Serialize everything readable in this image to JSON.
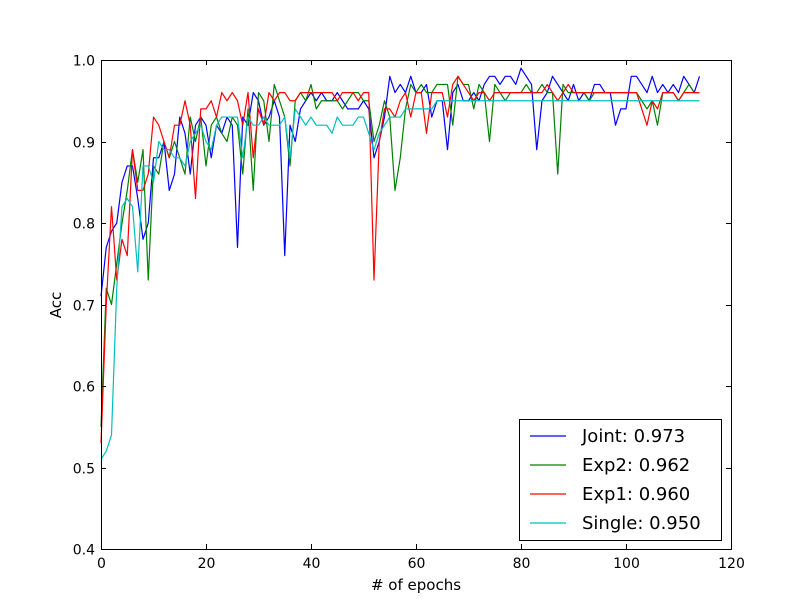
{
  "chart_data": {
    "type": "line",
    "title": "",
    "xlabel": "# of epochs",
    "ylabel": "Acc",
    "xlim": [
      0,
      120
    ],
    "ylim": [
      0.4,
      1.0
    ],
    "xticks": [
      "0",
      "20",
      "40",
      "60",
      "80",
      "100",
      "120"
    ],
    "yticks": [
      "0.4",
      "0.5",
      "0.6",
      "0.7",
      "0.8",
      "0.9",
      "1.0"
    ],
    "grid": false,
    "legend_position": "lower-right",
    "x": [
      0,
      1,
      2,
      3,
      4,
      5,
      6,
      7,
      8,
      9,
      10,
      11,
      12,
      13,
      14,
      15,
      16,
      17,
      18,
      19,
      20,
      21,
      22,
      23,
      24,
      25,
      26,
      27,
      28,
      29,
      30,
      31,
      32,
      33,
      34,
      35,
      36,
      37,
      38,
      39,
      40,
      41,
      42,
      43,
      44,
      45,
      46,
      47,
      48,
      49,
      50,
      51,
      52,
      53,
      54,
      55,
      56,
      57,
      58,
      59,
      60,
      61,
      62,
      63,
      64,
      65,
      66,
      67,
      68,
      69,
      70,
      71,
      72,
      73,
      74,
      75,
      76,
      77,
      78,
      79,
      80,
      81,
      82,
      83,
      84,
      85,
      86,
      87,
      88,
      89,
      90,
      91,
      92,
      93,
      94,
      95,
      96,
      97,
      98,
      99,
      100,
      101,
      102,
      103,
      104,
      105,
      106,
      107,
      108,
      109,
      110,
      111,
      112,
      113,
      114
    ],
    "series": [
      {
        "name": "Joint: 0.973",
        "color": "#0000ff",
        "values": [
          0.71,
          0.77,
          0.79,
          0.8,
          0.85,
          0.87,
          0.87,
          0.83,
          0.78,
          0.8,
          0.88,
          0.88,
          0.9,
          0.84,
          0.86,
          0.93,
          0.91,
          0.86,
          0.92,
          0.93,
          0.92,
          0.88,
          0.92,
          0.91,
          0.93,
          0.92,
          0.77,
          0.93,
          0.92,
          0.96,
          0.95,
          0.92,
          0.93,
          0.95,
          0.93,
          0.76,
          0.92,
          0.9,
          0.94,
          0.95,
          0.96,
          0.95,
          0.96,
          0.95,
          0.95,
          0.96,
          0.95,
          0.94,
          0.94,
          0.94,
          0.95,
          0.94,
          0.88,
          0.9,
          0.93,
          0.98,
          0.96,
          0.97,
          0.96,
          0.98,
          0.96,
          0.96,
          0.97,
          0.93,
          0.95,
          0.95,
          0.89,
          0.96,
          0.97,
          0.95,
          0.95,
          0.96,
          0.95,
          0.97,
          0.98,
          0.98,
          0.97,
          0.98,
          0.98,
          0.97,
          0.99,
          0.98,
          0.97,
          0.89,
          0.95,
          0.96,
          0.98,
          0.97,
          0.96,
          0.95,
          0.97,
          0.95,
          0.96,
          0.95,
          0.97,
          0.97,
          0.96,
          0.96,
          0.92,
          0.94,
          0.94,
          0.98,
          0.98,
          0.97,
          0.96,
          0.98,
          0.96,
          0.97,
          0.96,
          0.97,
          0.96,
          0.98,
          0.97,
          0.96,
          0.98
        ]
      },
      {
        "name": "Exp2: 0.962",
        "color": "#008000",
        "values": [
          0.55,
          0.72,
          0.7,
          0.75,
          0.8,
          0.84,
          0.89,
          0.85,
          0.89,
          0.73,
          0.87,
          0.86,
          0.9,
          0.88,
          0.9,
          0.88,
          0.86,
          0.93,
          0.9,
          0.93,
          0.87,
          0.92,
          0.93,
          0.91,
          0.9,
          0.93,
          0.92,
          0.86,
          0.94,
          0.84,
          0.96,
          0.95,
          0.9,
          0.97,
          0.95,
          0.93,
          0.87,
          0.95,
          0.96,
          0.95,
          0.97,
          0.94,
          0.95,
          0.95,
          0.95,
          0.95,
          0.94,
          0.95,
          0.96,
          0.96,
          0.95,
          0.95,
          0.9,
          0.92,
          0.95,
          0.93,
          0.84,
          0.88,
          0.94,
          0.97,
          0.96,
          0.97,
          0.96,
          0.96,
          0.97,
          0.97,
          0.97,
          0.92,
          0.98,
          0.97,
          0.97,
          0.94,
          0.97,
          0.96,
          0.9,
          0.97,
          0.96,
          0.95,
          0.96,
          0.96,
          0.96,
          0.97,
          0.96,
          0.96,
          0.97,
          0.96,
          0.96,
          0.86,
          0.97,
          0.96,
          0.96,
          0.96,
          0.96,
          0.95,
          0.96,
          0.96,
          0.96,
          0.96,
          0.96,
          0.96,
          0.96,
          0.96,
          0.96,
          0.95,
          0.94,
          0.95,
          0.92,
          0.96,
          0.96,
          0.96,
          0.95,
          0.96,
          0.97,
          0.96,
          0.96
        ]
      },
      {
        "name": "Exp1: 0.960",
        "color": "#ff0000",
        "values": [
          0.53,
          0.7,
          0.82,
          0.73,
          0.78,
          0.76,
          0.89,
          0.84,
          0.84,
          0.86,
          0.93,
          0.92,
          0.9,
          0.88,
          0.92,
          0.92,
          0.95,
          0.92,
          0.83,
          0.94,
          0.94,
          0.95,
          0.93,
          0.96,
          0.95,
          0.96,
          0.95,
          0.92,
          0.96,
          0.88,
          0.94,
          0.92,
          0.96,
          0.95,
          0.96,
          0.96,
          0.95,
          0.95,
          0.96,
          0.96,
          0.96,
          0.96,
          0.96,
          0.96,
          0.96,
          0.95,
          0.96,
          0.96,
          0.96,
          0.95,
          0.96,
          0.96,
          0.73,
          0.9,
          0.94,
          0.94,
          0.93,
          0.95,
          0.96,
          0.93,
          0.96,
          0.96,
          0.91,
          0.96,
          0.96,
          0.96,
          0.93,
          0.97,
          0.98,
          0.97,
          0.96,
          0.95,
          0.96,
          0.96,
          0.95,
          0.96,
          0.96,
          0.96,
          0.96,
          0.96,
          0.96,
          0.96,
          0.96,
          0.96,
          0.96,
          0.97,
          0.96,
          0.95,
          0.96,
          0.97,
          0.96,
          0.96,
          0.96,
          0.96,
          0.96,
          0.96,
          0.96,
          0.96,
          0.96,
          0.96,
          0.96,
          0.96,
          0.96,
          0.94,
          0.92,
          0.95,
          0.94,
          0.96,
          0.96,
          0.96,
          0.95,
          0.96,
          0.96,
          0.96,
          0.96
        ]
      },
      {
        "name": "Single: 0.950",
        "color": "#00bfbf",
        "values": [
          0.51,
          0.52,
          0.54,
          0.72,
          0.82,
          0.83,
          0.82,
          0.74,
          0.87,
          0.87,
          0.85,
          0.9,
          0.89,
          0.89,
          0.88,
          0.88,
          0.87,
          0.9,
          0.91,
          0.92,
          0.9,
          0.89,
          0.92,
          0.93,
          0.93,
          0.93,
          0.93,
          0.88,
          0.93,
          0.92,
          0.92,
          0.93,
          0.92,
          0.92,
          0.92,
          0.93,
          0.88,
          0.94,
          0.93,
          0.92,
          0.93,
          0.92,
          0.92,
          0.92,
          0.91,
          0.93,
          0.92,
          0.92,
          0.92,
          0.93,
          0.93,
          0.91,
          0.89,
          0.91,
          0.92,
          0.93,
          0.93,
          0.93,
          0.94,
          0.94,
          0.94,
          0.94,
          0.94,
          0.94,
          0.95,
          0.95,
          0.95,
          0.95,
          0.95,
          0.95,
          0.95,
          0.95,
          0.95,
          0.95,
          0.95,
          0.95,
          0.95,
          0.95,
          0.95,
          0.95,
          0.95,
          0.95,
          0.95,
          0.95,
          0.95,
          0.95,
          0.95,
          0.95,
          0.95,
          0.95,
          0.95,
          0.95,
          0.95,
          0.95,
          0.95,
          0.95,
          0.95,
          0.95,
          0.95,
          0.95,
          0.95,
          0.95,
          0.95,
          0.95,
          0.95,
          0.95,
          0.95,
          0.95,
          0.95,
          0.95,
          0.95,
          0.95,
          0.95,
          0.95,
          0.95
        ]
      }
    ]
  }
}
